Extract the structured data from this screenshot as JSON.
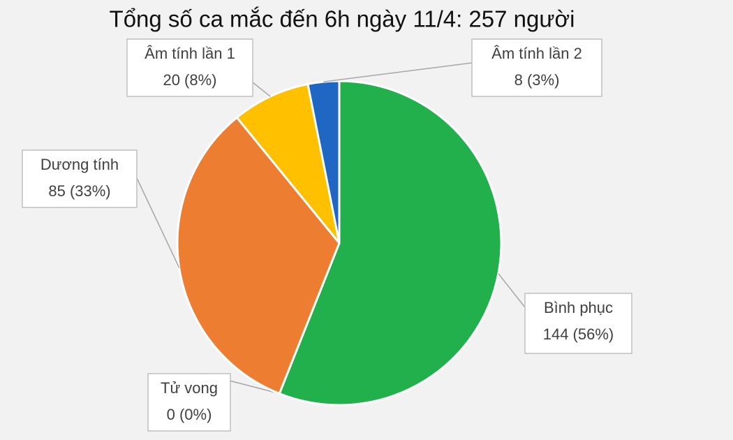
{
  "chart_data": {
    "type": "pie",
    "title": "Tổng số ca mắc đến 6h ngày 11/4: 257 người",
    "categories": [
      "Bình phục",
      "Tử vong",
      "Dương tính",
      "Âm tính lần 1",
      "Âm tính lần 2"
    ],
    "values": [
      144,
      0,
      85,
      20,
      8
    ],
    "value_labels": [
      "144 (56%)",
      "0 (0%)",
      "85 (33%)",
      "20 (8%)",
      "8 (3%)"
    ],
    "colors": [
      "#21b04b",
      "#7f7f7f",
      "#ed7d31",
      "#ffc000",
      "#2067c4"
    ]
  }
}
